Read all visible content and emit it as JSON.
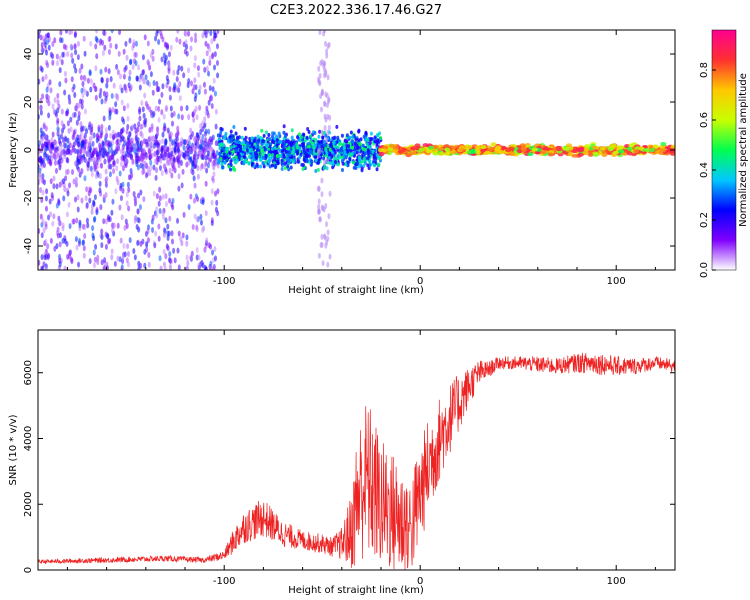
{
  "title": "C2E3.2022.336.17.46.G27",
  "colorbar": {
    "label": "Normalized spectral amplitude",
    "ticks": [
      "0.0",
      "0.2",
      "0.4",
      "0.6",
      "0.8"
    ],
    "tick_values": [
      0.0,
      0.2,
      0.4,
      0.6,
      0.8
    ],
    "range": [
      0.0,
      0.96
    ],
    "colors": [
      "#ffffff",
      "#8000ff",
      "#0000ff",
      "#00c8ff",
      "#00ff50",
      "#c8ff00",
      "#ffc800",
      "#ff3030",
      "#ff0090"
    ]
  },
  "chart_data": [
    {
      "type": "heatmap",
      "xlabel": "Height of straight line (km)",
      "ylabel": "Frequency (Hz)",
      "xlim": [
        -195,
        130
      ],
      "ylim": [
        -50,
        50
      ],
      "x_ticks": [
        -100,
        0,
        100
      ],
      "y_ticks": [
        -40,
        -20,
        0,
        20,
        40
      ],
      "regions": [
        {
          "x": [
            -195,
            -103
          ],
          "y_spread": [
            -50,
            50
          ],
          "amplitude": [
            0.05,
            0.3
          ],
          "color": "#7a1ff0"
        },
        {
          "x": [
            -103,
            -20
          ],
          "y_spread": [
            -12,
            12
          ],
          "amplitude": [
            0.2,
            0.5
          ],
          "color": "#00b4ff"
        },
        {
          "x": [
            -20,
            130
          ],
          "y_spread": [
            -3,
            3
          ],
          "amplitude": [
            0.45,
            0.9
          ],
          "color": "#ff3030"
        }
      ]
    },
    {
      "type": "line",
      "xlabel": "Height of straight line (km)",
      "ylabel": "SNR (10 * v/v)",
      "xlim": [
        -195,
        130
      ],
      "ylim": [
        0,
        7300
      ],
      "x_ticks": [
        -100,
        0,
        100
      ],
      "y_ticks": [
        0,
        2000,
        4000,
        6000
      ],
      "line_color": "#ee2222",
      "x": [
        -195,
        -160,
        -130,
        -110,
        -100,
        -95,
        -90,
        -80,
        -70,
        -60,
        -50,
        -45,
        -40,
        -35,
        -32,
        -28,
        -25,
        -20,
        -15,
        -10,
        -5,
        0,
        5,
        10,
        15,
        20,
        25,
        30,
        35,
        40,
        50,
        60,
        70,
        80,
        90,
        100,
        110,
        120,
        130
      ],
      "values": [
        250,
        300,
        350,
        300,
        450,
        900,
        1300,
        1600,
        1100,
        900,
        800,
        700,
        800,
        1200,
        2200,
        2800,
        2600,
        2000,
        1800,
        1500,
        1300,
        2300,
        3300,
        4000,
        4600,
        5100,
        5600,
        6000,
        6100,
        6300,
        6300,
        6250,
        6200,
        6300,
        6300,
        6200,
        6200,
        6300,
        6200
      ],
      "noise_amplitude": [
        60,
        80,
        90,
        80,
        150,
        400,
        500,
        600,
        400,
        300,
        300,
        300,
        500,
        1200,
        2200,
        2400,
        2400,
        2000,
        1900,
        1800,
        1600,
        1600,
        1500,
        1300,
        1100,
        900,
        600,
        400,
        250,
        200,
        200,
        250,
        250,
        300,
        350,
        300,
        250,
        200,
        200
      ]
    }
  ]
}
